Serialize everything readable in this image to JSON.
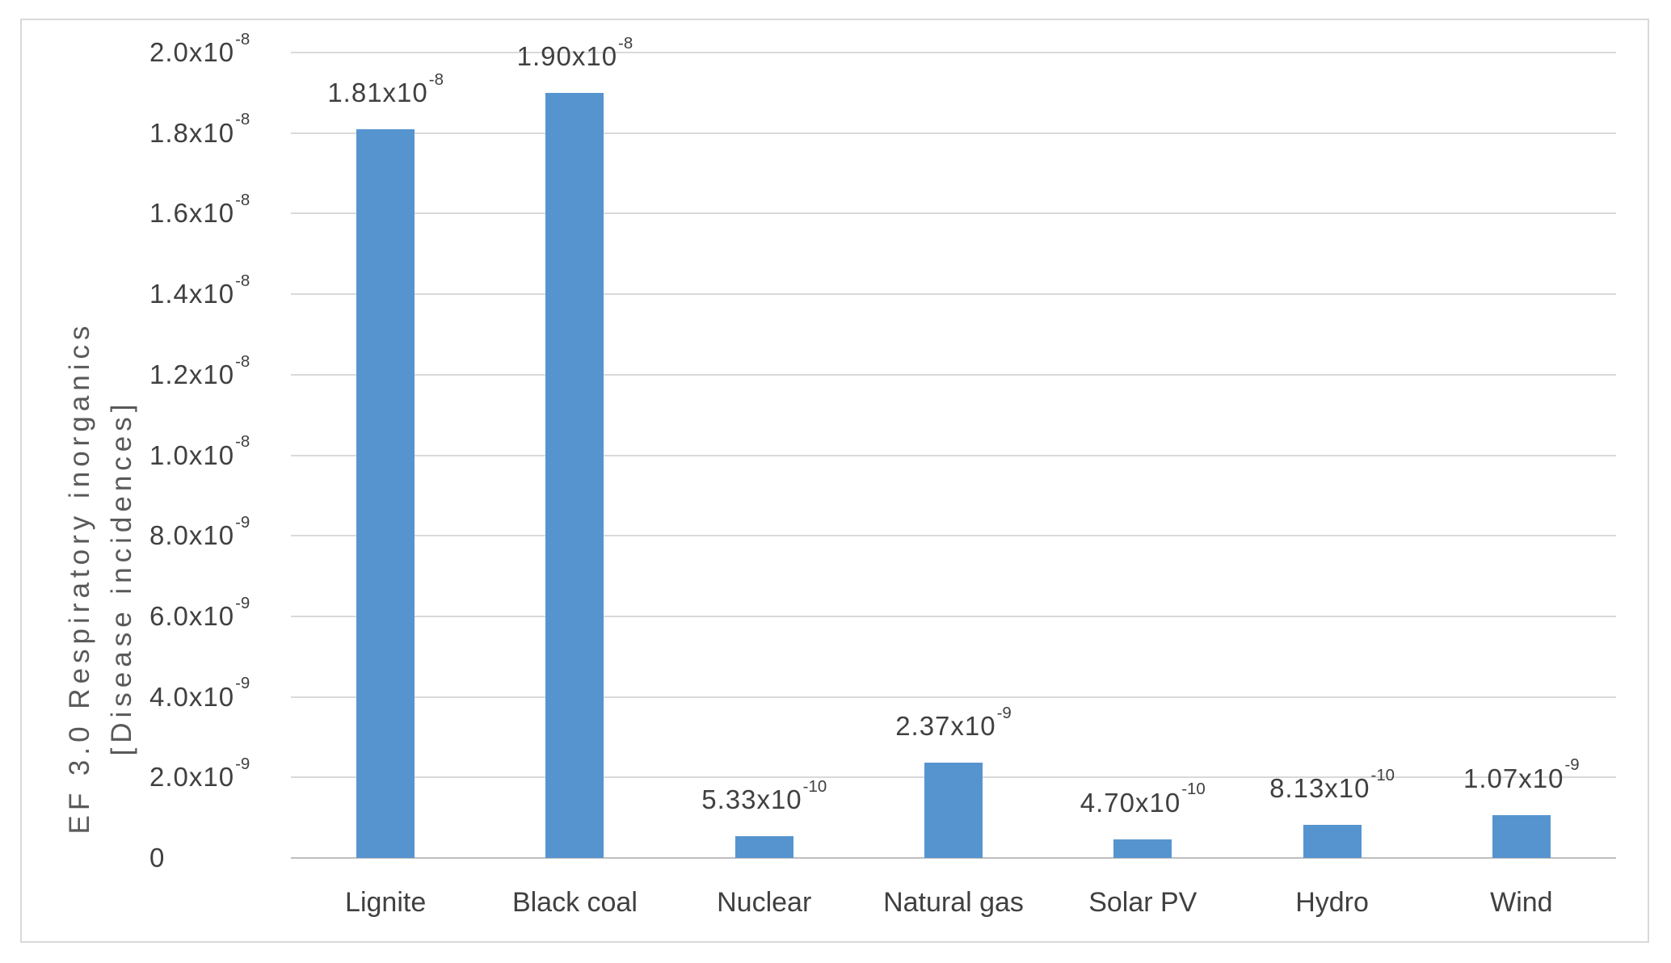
{
  "chart_data": {
    "type": "bar",
    "title": "",
    "ylabel_lines": [
      "EF 3.0 Respiratory inorganics",
      "[Disease incidences]"
    ],
    "xlabel": "",
    "ylim": [
      0,
      2e-08
    ],
    "grid": true,
    "legend": "none",
    "categories": [
      "Lignite",
      "Black coal",
      "Nuclear",
      "Natural gas",
      "Solar PV",
      "Hydro",
      "Wind"
    ],
    "values": [
      1.81e-08,
      1.9e-08,
      5.33e-10,
      2.37e-09,
      4.7e-10,
      8.13e-10,
      1.07e-09
    ],
    "data_labels": [
      {
        "base": "1.81x10",
        "exp": "-8"
      },
      {
        "base": "1.90x10",
        "exp": "-8"
      },
      {
        "base": "5.33x10",
        "exp": "-10"
      },
      {
        "base": "2.37x10",
        "exp": "-9"
      },
      {
        "base": "4.70x10",
        "exp": "-10"
      },
      {
        "base": "8.13x10",
        "exp": "-10"
      },
      {
        "base": "1.07x10",
        "exp": "-9"
      }
    ],
    "yticks": [
      {
        "value": 0,
        "base": "0",
        "exp": ""
      },
      {
        "value": 2e-09,
        "base": "2.0x10",
        "exp": "-9"
      },
      {
        "value": 4e-09,
        "base": "4.0x10",
        "exp": "-9"
      },
      {
        "value": 6e-09,
        "base": "6.0x10",
        "exp": "-9"
      },
      {
        "value": 8e-09,
        "base": "8.0x10",
        "exp": "-9"
      },
      {
        "value": 1e-08,
        "base": "1.0x10",
        "exp": "-8"
      },
      {
        "value": 1.2e-08,
        "base": "1.2x10",
        "exp": "-8"
      },
      {
        "value": 1.4e-08,
        "base": "1.4x10",
        "exp": "-8"
      },
      {
        "value": 1.6e-08,
        "base": "1.6x10",
        "exp": "-8"
      },
      {
        "value": 1.8e-08,
        "base": "1.8x10",
        "exp": "-8"
      },
      {
        "value": 2e-08,
        "base": "2.0x10",
        "exp": "-8"
      }
    ],
    "colors": {
      "bar": "#5694d0",
      "gridline": "#d9d9d9",
      "axis_line": "#bfbfbf",
      "tick_text": "#404040",
      "axis_title_text": "#595959",
      "frame_border": "#d9d9d9"
    }
  }
}
